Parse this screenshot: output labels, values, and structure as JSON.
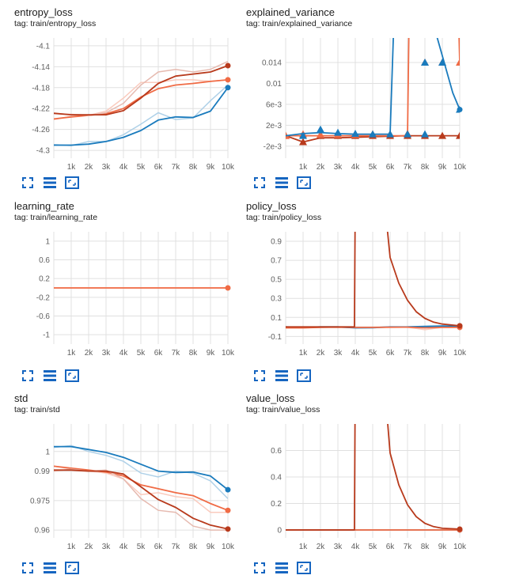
{
  "colors": {
    "blue": "#1a7bbd",
    "orange": "#f06b45",
    "darkred": "#b83a1c",
    "grid": "#e0e0e0",
    "zero": "#9e9e9e",
    "icon": "#1565c0"
  },
  "toolbar_icons": [
    "fullscreen-icon",
    "data-table-icon",
    "fit-domain-icon"
  ],
  "cards": [
    {
      "id": "entropy_loss",
      "title": "entropy_loss",
      "tag": "tag: train/entropy_loss",
      "chart_data": {
        "type": "line",
        "x": [
          0,
          1000,
          2000,
          3000,
          4000,
          5000,
          6000,
          7000,
          8000,
          9000,
          10000
        ],
        "xticks": [
          "1k",
          "2k",
          "3k",
          "4k",
          "5k",
          "6k",
          "7k",
          "8k",
          "9k",
          "10k"
        ],
        "yticks": [
          "-4.1",
          "-4.14",
          "-4.18",
          "-4.22",
          "-4.26",
          "-4.3"
        ],
        "ylim": [
          -4.315,
          -4.085
        ],
        "series": [
          {
            "color": "blue",
            "smoothed": [
              -4.29,
              -4.29,
              -4.288,
              -4.283,
              -4.275,
              -4.262,
              -4.242,
              -4.236,
              -4.237,
              -4.225,
              -4.18
            ],
            "raw": [
              -4.289,
              -4.291,
              -4.283,
              -4.283,
              -4.27,
              -4.25,
              -4.228,
              -4.241,
              -4.238,
              -4.205,
              -4.175
            ]
          },
          {
            "color": "orange",
            "smoothed": [
              -4.24,
              -4.236,
              -4.233,
              -4.23,
              -4.22,
              -4.198,
              -4.182,
              -4.175,
              -4.172,
              -4.168,
              -4.165
            ],
            "raw": [
              -4.241,
              -4.235,
              -4.233,
              -4.225,
              -4.2,
              -4.17,
              -4.17,
              -4.165,
              -4.165,
              -4.168,
              -4.165
            ]
          },
          {
            "color": "darkred",
            "smoothed": [
              -4.229,
              -4.232,
              -4.232,
              -4.232,
              -4.224,
              -4.2,
              -4.172,
              -4.158,
              -4.154,
              -4.15,
              -4.138
            ],
            "raw": [
              -4.23,
              -4.231,
              -4.233,
              -4.228,
              -4.21,
              -4.175,
              -4.15,
              -4.145,
              -4.15,
              -4.145,
              -4.13
            ]
          }
        ]
      }
    },
    {
      "id": "explained_variance",
      "title": "explained_variance",
      "tag": "tag: train/explained_variance",
      "chart_data": {
        "type": "line",
        "x": [
          0,
          1000,
          2000,
          3000,
          4000,
          5000,
          6000,
          7000,
          8000,
          9000,
          10000
        ],
        "xticks": [
          "1k",
          "2k",
          "3k",
          "4k",
          "5k",
          "6k",
          "7k",
          "8k",
          "9k",
          "10k"
        ],
        "yticks": [
          "0.014",
          "0.01",
          "6e-3",
          "2e-3",
          "-2e-3"
        ],
        "ytick_values": [
          0.014,
          0.01,
          0.006,
          0.002,
          -0.002
        ],
        "ylim": [
          -0.0043,
          0.0187
        ],
        "zero_line": 0,
        "series": [
          {
            "color": "darkred",
            "smoothed": [
              0,
              -0.0012,
              -0.0004,
              -0.0004,
              -0.0003,
              -0.0002,
              -0.0001,
              0,
              0,
              0,
              0
            ],
            "markers": [
              0,
              -0.0012,
              0,
              0,
              0,
              0,
              0,
              0,
              0,
              0,
              0
            ],
            "marker_x": [
              0,
              1000,
              2000,
              3000,
              4000,
              5000,
              6000,
              7000,
              8000,
              9000,
              10000
            ]
          },
          {
            "color": "orange",
            "smoothed": [
              0,
              0,
              0,
              0,
              0,
              0,
              0,
              0,
              0.25,
              0.14,
              0.014
            ],
            "markers": [
              0,
              0.0003,
              0.0002,
              0.0002,
              0.0002,
              0.0003,
              0.0003,
              0.0004,
              0.014,
              0.014,
              0.014
            ],
            "marker_x": [
              0,
              1000,
              2000,
              3000,
              4000,
              5000,
              6000,
              7000,
              8000,
              9000,
              10000
            ]
          },
          {
            "color": "blue",
            "smoothed": [
              0,
              0.0004,
              0.0006,
              0.0004,
              0.0003,
              0.0003,
              0.0003,
              0.08,
              0.05,
              0.02,
              0.0082,
              0.005
            ],
            "x_override": [
              0,
              1000,
              2000,
              3000,
              4000,
              5000,
              6000,
              6800,
              7600,
              8600,
              9600,
              10000
            ],
            "markers": [
              0,
              0.0012,
              0.0006,
              0.0004,
              0.0003,
              0.0003,
              0.0003,
              0.0003,
              0.014,
              0.014,
              0.005
            ],
            "marker_x": [
              1000,
              2000,
              3000,
              4000,
              5000,
              6000,
              7000,
              8000,
              8000,
              9000,
              10000
            ]
          }
        ]
      }
    },
    {
      "id": "learning_rate",
      "title": "learning_rate",
      "tag": "tag: train/learning_rate",
      "chart_data": {
        "type": "line",
        "x": [
          0,
          1000,
          2000,
          3000,
          4000,
          5000,
          6000,
          7000,
          8000,
          9000,
          10000
        ],
        "xticks": [
          "1k",
          "2k",
          "3k",
          "4k",
          "5k",
          "6k",
          "7k",
          "8k",
          "9k",
          "10k"
        ],
        "yticks": [
          "1",
          "0.6",
          "0.2",
          "-0.2",
          "-0.6",
          "-1"
        ],
        "ylim": [
          -1.2,
          1.2
        ],
        "series": [
          {
            "color": "orange",
            "smoothed": [
              0,
              0,
              0,
              0,
              0,
              0,
              0,
              0,
              0,
              0,
              0
            ],
            "raw": [
              0,
              0,
              0,
              0,
              0,
              0,
              0,
              0,
              0,
              0,
              0
            ]
          }
        ]
      }
    },
    {
      "id": "policy_loss",
      "title": "policy_loss",
      "tag": "tag: train/policy_loss",
      "chart_data": {
        "type": "line",
        "x": [
          0,
          1000,
          2000,
          3000,
          4000,
          5000,
          6000,
          7000,
          8000,
          9000,
          10000
        ],
        "xticks": [
          "1k",
          "2k",
          "3k",
          "4k",
          "5k",
          "6k",
          "7k",
          "8k",
          "9k",
          "10k"
        ],
        "yticks": [
          "0.9",
          "0.7",
          "0.5",
          "0.3",
          "0.1",
          "-0.1"
        ],
        "ylim": [
          -0.18,
          1.0
        ],
        "series": [
          {
            "color": "blue",
            "smoothed": [
              0,
              -0.005,
              0,
              0,
              -0.01,
              -0.008,
              0,
              0,
              0.005,
              0.01,
              0.008
            ],
            "raw": [
              0,
              -0.005,
              0,
              0,
              -0.01,
              -0.008,
              0,
              0,
              0.005,
              0.01,
              0.008
            ]
          },
          {
            "color": "orange",
            "smoothed": [
              -0.01,
              -0.01,
              -0.005,
              -0.002,
              -0.005,
              -0.005,
              -0.003,
              -0.002,
              -0.01,
              -0.005,
              -0.005
            ],
            "raw": [
              -0.01,
              -0.01,
              -0.005,
              -0.002,
              -0.005,
              -0.005,
              -0.003,
              -0.002,
              -0.03,
              -0.005,
              -0.005
            ]
          },
          {
            "color": "darkred",
            "smoothed": [
              0,
              0,
              0,
              0,
              0,
              0,
              1.4,
              3.5,
              0.73,
              0.46,
              0.28,
              0.16,
              0.09,
              0.05,
              0.03,
              0.012
            ],
            "x_override": [
              0,
              1000,
              2000,
              3000,
              3900,
              3950,
              4000,
              4500,
              6000,
              6500,
              7000,
              7500,
              8000,
              8500,
              9000,
              10000
            ]
          }
        ]
      }
    },
    {
      "id": "std",
      "title": "std",
      "tag": "tag: train/std",
      "chart_data": {
        "type": "line",
        "x": [
          0,
          1000,
          2000,
          3000,
          4000,
          5000,
          6000,
          7000,
          8000,
          9000,
          10000
        ],
        "xticks": [
          "1k",
          "2k",
          "3k",
          "4k",
          "5k",
          "6k",
          "7k",
          "8k",
          "9k",
          "10k"
        ],
        "yticks": [
          "1",
          "0.99",
          "0.975",
          "0.96"
        ],
        "ytick_values": [
          1.0,
          0.99,
          0.975,
          0.96
        ],
        "ylim": [
          0.956,
          1.014
        ],
        "series": [
          {
            "color": "blue",
            "smoothed": [
              1.0025,
              1.0025,
              1.001,
              0.9995,
              0.997,
              0.9935,
              0.99,
              0.9893,
              0.9895,
              0.9875,
              0.9805
            ],
            "raw": [
              1.002,
              1.003,
              1.0,
              0.998,
              0.995,
              0.989,
              0.987,
              0.99,
              0.989,
              0.985,
              0.976
            ]
          },
          {
            "color": "orange",
            "smoothed": [
              0.9925,
              0.9915,
              0.9905,
              0.9895,
              0.9875,
              0.983,
              0.981,
              0.979,
              0.9775,
              0.9735,
              0.97
            ],
            "raw": [
              0.9925,
              0.991,
              0.99,
              0.989,
              0.986,
              0.978,
              0.979,
              0.977,
              0.976,
              0.969,
              0.969
            ]
          },
          {
            "color": "darkred",
            "smoothed": [
              0.9905,
              0.9905,
              0.99,
              0.99,
              0.9885,
              0.982,
              0.9755,
              0.9715,
              0.966,
              0.9625,
              0.9605
            ],
            "raw": [
              0.99,
              0.991,
              0.99,
              0.9905,
              0.986,
              0.976,
              0.97,
              0.969,
              0.962,
              0.96,
              0.96
            ]
          }
        ]
      }
    },
    {
      "id": "value_loss",
      "title": "value_loss",
      "tag": "tag: train/value_loss",
      "chart_data": {
        "type": "line",
        "x": [
          0,
          1000,
          2000,
          3000,
          4000,
          5000,
          6000,
          7000,
          8000,
          9000,
          10000
        ],
        "xticks": [
          "1k",
          "2k",
          "3k",
          "4k",
          "5k",
          "6k",
          "7k",
          "8k",
          "9k",
          "10k"
        ],
        "yticks": [
          "0.6",
          "0.4",
          "0.2",
          "0"
        ],
        "ylim": [
          -0.06,
          0.8
        ],
        "series": [
          {
            "color": "blue",
            "smoothed": [
              0,
              0,
              0,
              0,
              0,
              0,
              0,
              0,
              0,
              0,
              0
            ],
            "raw": [
              0,
              0,
              0,
              0,
              0,
              0,
              0,
              0,
              0,
              0,
              0
            ]
          },
          {
            "color": "orange",
            "smoothed": [
              0,
              0,
              0,
              0,
              0,
              0,
              0,
              0,
              0,
              0,
              0
            ],
            "raw": [
              0,
              0,
              0,
              0,
              0,
              0,
              0,
              0,
              0,
              0,
              0
            ]
          },
          {
            "color": "darkred",
            "smoothed": [
              0,
              0,
              0,
              0,
              0,
              0,
              1.2,
              3.0,
              0.58,
              0.34,
              0.19,
              0.1,
              0.05,
              0.025,
              0.012,
              0.006
            ],
            "x_override": [
              0,
              1000,
              2000,
              3000,
              3900,
              3950,
              4000,
              4500,
              6000,
              6500,
              7000,
              7500,
              8000,
              8500,
              9000,
              10000
            ]
          }
        ]
      }
    }
  ]
}
